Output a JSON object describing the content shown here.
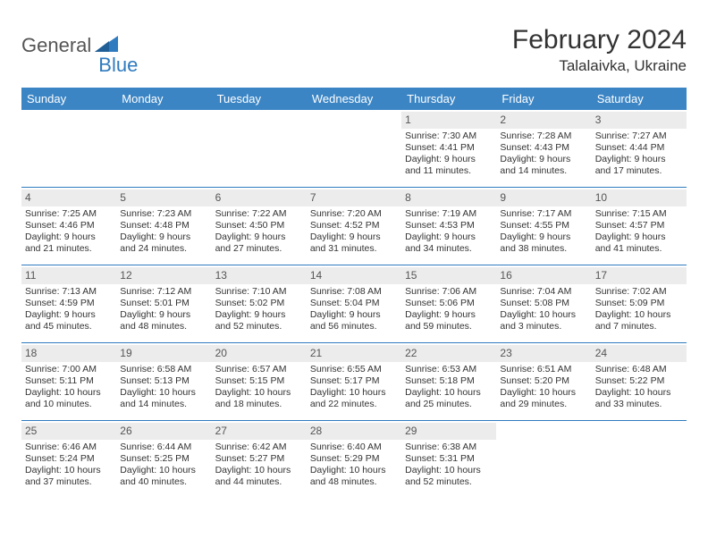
{
  "brand": {
    "part1": "General",
    "part2": "Blue"
  },
  "title": "February 2024",
  "location": "Talalaivka, Ukraine",
  "colors": {
    "header_bg": "#3b85c5",
    "header_text": "#ffffff",
    "accent": "#2f7bbf",
    "daynum_bg": "#ececec",
    "text": "#333333",
    "border": "#2f7bbf",
    "page_bg": "#ffffff"
  },
  "day_headers": [
    "Sunday",
    "Monday",
    "Tuesday",
    "Wednesday",
    "Thursday",
    "Friday",
    "Saturday"
  ],
  "weeks": [
    [
      {
        "day": "",
        "sunrise": "",
        "sunset": "",
        "daylight1": "",
        "daylight2": ""
      },
      {
        "day": "",
        "sunrise": "",
        "sunset": "",
        "daylight1": "",
        "daylight2": ""
      },
      {
        "day": "",
        "sunrise": "",
        "sunset": "",
        "daylight1": "",
        "daylight2": ""
      },
      {
        "day": "",
        "sunrise": "",
        "sunset": "",
        "daylight1": "",
        "daylight2": ""
      },
      {
        "day": "1",
        "sunrise": "Sunrise: 7:30 AM",
        "sunset": "Sunset: 4:41 PM",
        "daylight1": "Daylight: 9 hours",
        "daylight2": "and 11 minutes."
      },
      {
        "day": "2",
        "sunrise": "Sunrise: 7:28 AM",
        "sunset": "Sunset: 4:43 PM",
        "daylight1": "Daylight: 9 hours",
        "daylight2": "and 14 minutes."
      },
      {
        "day": "3",
        "sunrise": "Sunrise: 7:27 AM",
        "sunset": "Sunset: 4:44 PM",
        "daylight1": "Daylight: 9 hours",
        "daylight2": "and 17 minutes."
      }
    ],
    [
      {
        "day": "4",
        "sunrise": "Sunrise: 7:25 AM",
        "sunset": "Sunset: 4:46 PM",
        "daylight1": "Daylight: 9 hours",
        "daylight2": "and 21 minutes."
      },
      {
        "day": "5",
        "sunrise": "Sunrise: 7:23 AM",
        "sunset": "Sunset: 4:48 PM",
        "daylight1": "Daylight: 9 hours",
        "daylight2": "and 24 minutes."
      },
      {
        "day": "6",
        "sunrise": "Sunrise: 7:22 AM",
        "sunset": "Sunset: 4:50 PM",
        "daylight1": "Daylight: 9 hours",
        "daylight2": "and 27 minutes."
      },
      {
        "day": "7",
        "sunrise": "Sunrise: 7:20 AM",
        "sunset": "Sunset: 4:52 PM",
        "daylight1": "Daylight: 9 hours",
        "daylight2": "and 31 minutes."
      },
      {
        "day": "8",
        "sunrise": "Sunrise: 7:19 AM",
        "sunset": "Sunset: 4:53 PM",
        "daylight1": "Daylight: 9 hours",
        "daylight2": "and 34 minutes."
      },
      {
        "day": "9",
        "sunrise": "Sunrise: 7:17 AM",
        "sunset": "Sunset: 4:55 PM",
        "daylight1": "Daylight: 9 hours",
        "daylight2": "and 38 minutes."
      },
      {
        "day": "10",
        "sunrise": "Sunrise: 7:15 AM",
        "sunset": "Sunset: 4:57 PM",
        "daylight1": "Daylight: 9 hours",
        "daylight2": "and 41 minutes."
      }
    ],
    [
      {
        "day": "11",
        "sunrise": "Sunrise: 7:13 AM",
        "sunset": "Sunset: 4:59 PM",
        "daylight1": "Daylight: 9 hours",
        "daylight2": "and 45 minutes."
      },
      {
        "day": "12",
        "sunrise": "Sunrise: 7:12 AM",
        "sunset": "Sunset: 5:01 PM",
        "daylight1": "Daylight: 9 hours",
        "daylight2": "and 48 minutes."
      },
      {
        "day": "13",
        "sunrise": "Sunrise: 7:10 AM",
        "sunset": "Sunset: 5:02 PM",
        "daylight1": "Daylight: 9 hours",
        "daylight2": "and 52 minutes."
      },
      {
        "day": "14",
        "sunrise": "Sunrise: 7:08 AM",
        "sunset": "Sunset: 5:04 PM",
        "daylight1": "Daylight: 9 hours",
        "daylight2": "and 56 minutes."
      },
      {
        "day": "15",
        "sunrise": "Sunrise: 7:06 AM",
        "sunset": "Sunset: 5:06 PM",
        "daylight1": "Daylight: 9 hours",
        "daylight2": "and 59 minutes."
      },
      {
        "day": "16",
        "sunrise": "Sunrise: 7:04 AM",
        "sunset": "Sunset: 5:08 PM",
        "daylight1": "Daylight: 10 hours",
        "daylight2": "and 3 minutes."
      },
      {
        "day": "17",
        "sunrise": "Sunrise: 7:02 AM",
        "sunset": "Sunset: 5:09 PM",
        "daylight1": "Daylight: 10 hours",
        "daylight2": "and 7 minutes."
      }
    ],
    [
      {
        "day": "18",
        "sunrise": "Sunrise: 7:00 AM",
        "sunset": "Sunset: 5:11 PM",
        "daylight1": "Daylight: 10 hours",
        "daylight2": "and 10 minutes."
      },
      {
        "day": "19",
        "sunrise": "Sunrise: 6:58 AM",
        "sunset": "Sunset: 5:13 PM",
        "daylight1": "Daylight: 10 hours",
        "daylight2": "and 14 minutes."
      },
      {
        "day": "20",
        "sunrise": "Sunrise: 6:57 AM",
        "sunset": "Sunset: 5:15 PM",
        "daylight1": "Daylight: 10 hours",
        "daylight2": "and 18 minutes."
      },
      {
        "day": "21",
        "sunrise": "Sunrise: 6:55 AM",
        "sunset": "Sunset: 5:17 PM",
        "daylight1": "Daylight: 10 hours",
        "daylight2": "and 22 minutes."
      },
      {
        "day": "22",
        "sunrise": "Sunrise: 6:53 AM",
        "sunset": "Sunset: 5:18 PM",
        "daylight1": "Daylight: 10 hours",
        "daylight2": "and 25 minutes."
      },
      {
        "day": "23",
        "sunrise": "Sunrise: 6:51 AM",
        "sunset": "Sunset: 5:20 PM",
        "daylight1": "Daylight: 10 hours",
        "daylight2": "and 29 minutes."
      },
      {
        "day": "24",
        "sunrise": "Sunrise: 6:48 AM",
        "sunset": "Sunset: 5:22 PM",
        "daylight1": "Daylight: 10 hours",
        "daylight2": "and 33 minutes."
      }
    ],
    [
      {
        "day": "25",
        "sunrise": "Sunrise: 6:46 AM",
        "sunset": "Sunset: 5:24 PM",
        "daylight1": "Daylight: 10 hours",
        "daylight2": "and 37 minutes."
      },
      {
        "day": "26",
        "sunrise": "Sunrise: 6:44 AM",
        "sunset": "Sunset: 5:25 PM",
        "daylight1": "Daylight: 10 hours",
        "daylight2": "and 40 minutes."
      },
      {
        "day": "27",
        "sunrise": "Sunrise: 6:42 AM",
        "sunset": "Sunset: 5:27 PM",
        "daylight1": "Daylight: 10 hours",
        "daylight2": "and 44 minutes."
      },
      {
        "day": "28",
        "sunrise": "Sunrise: 6:40 AM",
        "sunset": "Sunset: 5:29 PM",
        "daylight1": "Daylight: 10 hours",
        "daylight2": "and 48 minutes."
      },
      {
        "day": "29",
        "sunrise": "Sunrise: 6:38 AM",
        "sunset": "Sunset: 5:31 PM",
        "daylight1": "Daylight: 10 hours",
        "daylight2": "and 52 minutes."
      },
      {
        "day": "",
        "sunrise": "",
        "sunset": "",
        "daylight1": "",
        "daylight2": ""
      },
      {
        "day": "",
        "sunrise": "",
        "sunset": "",
        "daylight1": "",
        "daylight2": ""
      }
    ]
  ]
}
